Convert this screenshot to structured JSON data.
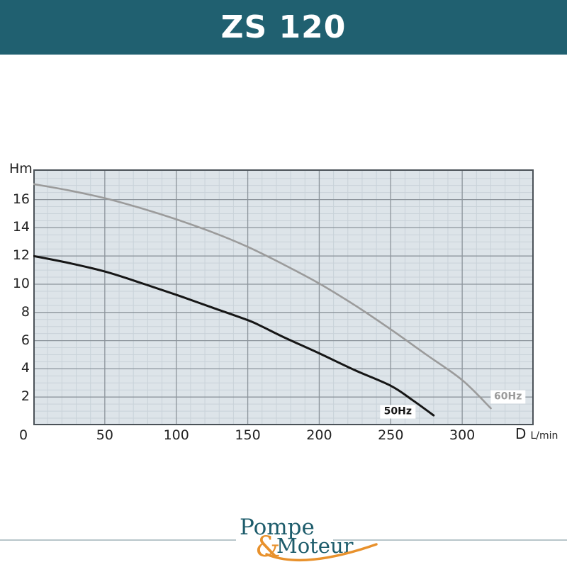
{
  "header": {
    "title": "ZS 120"
  },
  "colors": {
    "header_bg": "#206070",
    "plot_bg": "#dde4e9",
    "grid_minor": "#c9d2d9",
    "grid_major": "#8c949b",
    "plot_border": "#4b5258",
    "tick_text": "#222222",
    "series_50hz": "#161616",
    "series_60hz": "#9b9b9b",
    "label_box_bg": "#ffffff",
    "footer_line": "#b8c6ca",
    "logo_teal": "#1d5c6b",
    "logo_orange": "#e8912c"
  },
  "chart_data": {
    "type": "line",
    "title": "ZS 120",
    "x_axis": {
      "label": "D",
      "unit": "L/min",
      "range": [
        0,
        350
      ],
      "ticks": [
        0,
        50,
        100,
        150,
        200,
        250,
        300
      ],
      "minor_step": 10
    },
    "y_axis": {
      "label": "Hm",
      "range": [
        0,
        18.14
      ],
      "ticks": [
        2,
        4,
        6,
        8,
        10,
        12,
        14,
        16
      ],
      "minor_step": 0.5
    },
    "grid": "on",
    "legend_position": "inline-labels",
    "series": [
      {
        "name": "50Hz",
        "color_key": "series_50hz",
        "label_anchor": [
          255,
          0.95
        ],
        "points": [
          [
            0,
            12.0
          ],
          [
            25,
            11.5
          ],
          [
            50,
            10.9
          ],
          [
            75,
            10.1
          ],
          [
            100,
            9.25
          ],
          [
            125,
            8.35
          ],
          [
            150,
            7.45
          ],
          [
            160,
            7.0
          ],
          [
            175,
            6.25
          ],
          [
            200,
            5.1
          ],
          [
            225,
            3.9
          ],
          [
            250,
            2.8
          ],
          [
            265,
            1.8
          ],
          [
            280,
            0.7
          ]
        ]
      },
      {
        "name": "60Hz",
        "color_key": "series_60hz",
        "label_anchor": [
          332,
          2.0
        ],
        "points": [
          [
            0,
            17.1
          ],
          [
            25,
            16.65
          ],
          [
            50,
            16.1
          ],
          [
            75,
            15.4
          ],
          [
            100,
            14.6
          ],
          [
            125,
            13.7
          ],
          [
            150,
            12.65
          ],
          [
            175,
            11.4
          ],
          [
            200,
            10.05
          ],
          [
            225,
            8.5
          ],
          [
            250,
            6.8
          ],
          [
            275,
            5.0
          ],
          [
            300,
            3.2
          ],
          [
            320,
            1.2
          ]
        ]
      }
    ]
  },
  "footer": {
    "logo_line1": "Pompe",
    "logo_amp": "&",
    "logo_line2": "Moteur"
  }
}
